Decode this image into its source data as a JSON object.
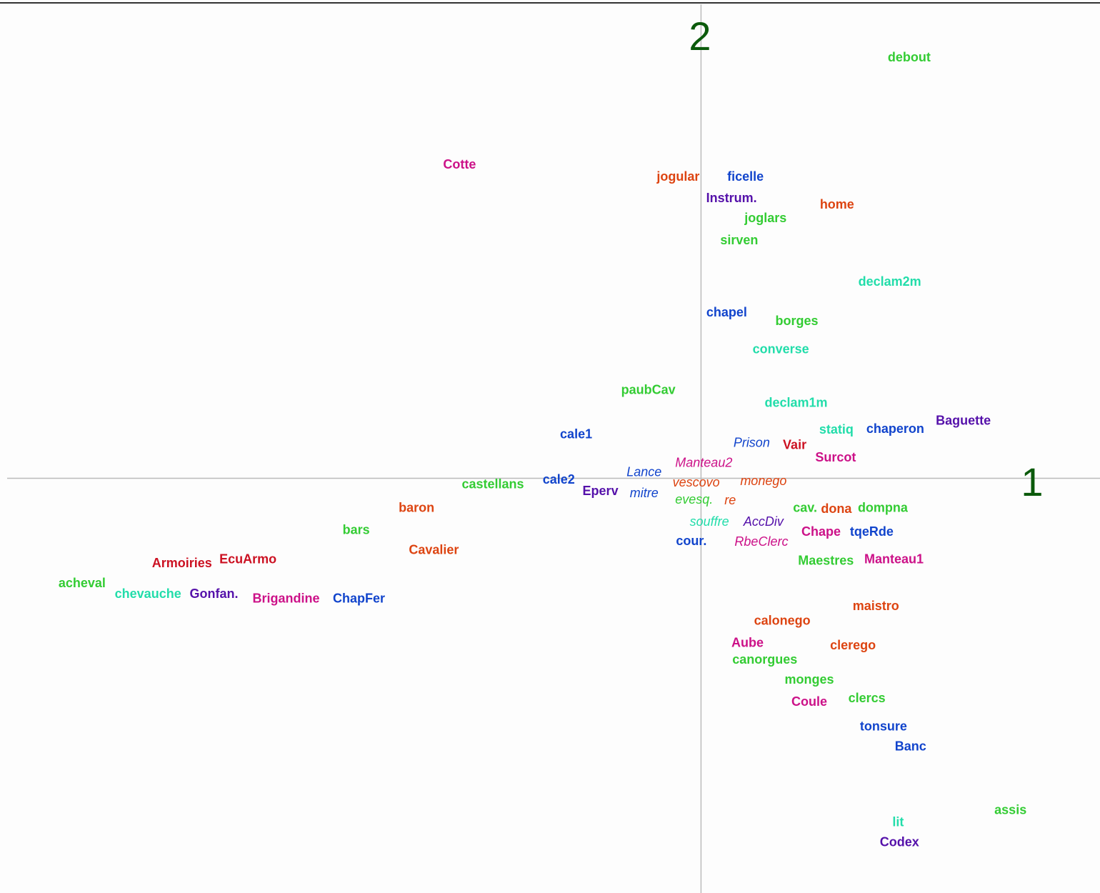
{
  "chart_data": {
    "type": "scatter",
    "title": "",
    "xlabel": "1",
    "ylabel": "2",
    "xlim": [
      -1.0,
      0.575
    ],
    "ylim": [
      -0.62,
      0.715
    ],
    "grid": false,
    "legend": "none",
    "colors": {
      "green": "#33cc33",
      "teal": "#22ddaa",
      "orange": "#dd4411",
      "red": "#cc1122",
      "magenta": "#cc1188",
      "blue": "#1144cc",
      "purple": "#5511aa"
    },
    "points": [
      {
        "label": "debout",
        "x": 0.3,
        "y": 0.628,
        "color": "green",
        "style": "bold"
      },
      {
        "label": "Cotte",
        "x": -0.348,
        "y": 0.468,
        "color": "magenta",
        "style": "bold"
      },
      {
        "label": "jogular",
        "x": -0.033,
        "y": 0.45,
        "color": "orange",
        "style": "bold"
      },
      {
        "label": "ficelle",
        "x": 0.064,
        "y": 0.45,
        "color": "blue",
        "style": "bold"
      },
      {
        "label": "Instrum.",
        "x": 0.044,
        "y": 0.418,
        "color": "purple",
        "style": "bold"
      },
      {
        "label": "home",
        "x": 0.196,
        "y": 0.408,
        "color": "orange",
        "style": "bold"
      },
      {
        "label": "joglars",
        "x": 0.093,
        "y": 0.388,
        "color": "green",
        "style": "bold"
      },
      {
        "label": "sirven",
        "x": 0.055,
        "y": 0.355,
        "color": "green",
        "style": "bold"
      },
      {
        "label": "declam2m",
        "x": 0.272,
        "y": 0.293,
        "color": "teal",
        "style": "bold"
      },
      {
        "label": "chapel",
        "x": 0.037,
        "y": 0.247,
        "color": "blue",
        "style": "bold"
      },
      {
        "label": "borges",
        "x": 0.138,
        "y": 0.234,
        "color": "green",
        "style": "bold"
      },
      {
        "label": "converse",
        "x": 0.115,
        "y": 0.192,
        "color": "teal",
        "style": "bold"
      },
      {
        "label": "paubCav",
        "x": -0.076,
        "y": 0.131,
        "color": "green",
        "style": "bold"
      },
      {
        "label": "declam1m",
        "x": 0.137,
        "y": 0.112,
        "color": "teal",
        "style": "bold"
      },
      {
        "label": "cale1",
        "x": -0.18,
        "y": 0.065,
        "color": "blue",
        "style": "bold"
      },
      {
        "label": "Baguette",
        "x": 0.378,
        "y": 0.085,
        "color": "purple",
        "style": "bold"
      },
      {
        "label": "statiq",
        "x": 0.195,
        "y": 0.072,
        "color": "teal",
        "style": "bold"
      },
      {
        "label": "chaperon",
        "x": 0.28,
        "y": 0.073,
        "color": "blue",
        "style": "bold"
      },
      {
        "label": "Prison",
        "x": 0.073,
        "y": 0.052,
        "color": "blue",
        "style": "italic"
      },
      {
        "label": "Vair",
        "x": 0.135,
        "y": 0.049,
        "color": "red",
        "style": "bold"
      },
      {
        "label": "Surcot",
        "x": 0.194,
        "y": 0.03,
        "color": "magenta",
        "style": "bold"
      },
      {
        "label": "Manteau2",
        "x": 0.004,
        "y": 0.022,
        "color": "magenta",
        "style": "italic"
      },
      {
        "label": "Lance",
        "x": -0.082,
        "y": 0.008,
        "color": "blue",
        "style": "italic"
      },
      {
        "label": "castellans",
        "x": -0.3,
        "y": -0.01,
        "color": "green",
        "style": "bold"
      },
      {
        "label": "cale2",
        "x": -0.205,
        "y": -0.003,
        "color": "blue",
        "style": "bold"
      },
      {
        "label": "vescovo",
        "x": -0.007,
        "y": -0.007,
        "color": "orange",
        "style": "italic"
      },
      {
        "label": "monego",
        "x": 0.09,
        "y": -0.005,
        "color": "orange",
        "style": "italic"
      },
      {
        "label": "Eperv",
        "x": -0.145,
        "y": -0.02,
        "color": "purple",
        "style": "bold"
      },
      {
        "label": "mitre",
        "x": -0.082,
        "y": -0.023,
        "color": "blue",
        "style": "italic"
      },
      {
        "label": "baron",
        "x": -0.41,
        "y": -0.045,
        "color": "orange",
        "style": "bold"
      },
      {
        "label": "evesq.",
        "x": -0.01,
        "y": -0.033,
        "color": "green",
        "style": "italic"
      },
      {
        "label": "re",
        "x": 0.042,
        "y": -0.034,
        "color": "orange",
        "style": "italic"
      },
      {
        "label": "cav.",
        "x": 0.15,
        "y": -0.045,
        "color": "green",
        "style": "bold"
      },
      {
        "label": "dona",
        "x": 0.195,
        "y": -0.047,
        "color": "orange",
        "style": "bold"
      },
      {
        "label": "dompna",
        "x": 0.262,
        "y": -0.045,
        "color": "green",
        "style": "bold"
      },
      {
        "label": "bars",
        "x": -0.497,
        "y": -0.078,
        "color": "green",
        "style": "bold"
      },
      {
        "label": "souffre",
        "x": 0.012,
        "y": -0.066,
        "color": "teal",
        "style": "italic"
      },
      {
        "label": "AccDiv",
        "x": 0.09,
        "y": -0.066,
        "color": "purple",
        "style": "italic"
      },
      {
        "label": "Chape",
        "x": 0.173,
        "y": -0.081,
        "color": "magenta",
        "style": "bold"
      },
      {
        "label": "tqeRde",
        "x": 0.246,
        "y": -0.081,
        "color": "blue",
        "style": "bold"
      },
      {
        "label": "cour.",
        "x": -0.014,
        "y": -0.095,
        "color": "blue",
        "style": "bold"
      },
      {
        "label": "RbeClerc",
        "x": 0.087,
        "y": -0.096,
        "color": "magenta",
        "style": "italic"
      },
      {
        "label": "Cavalier",
        "x": -0.385,
        "y": -0.108,
        "color": "orange",
        "style": "bold"
      },
      {
        "label": "Armoiries",
        "x": -0.748,
        "y": -0.128,
        "color": "red",
        "style": "bold"
      },
      {
        "label": "EcuArmo",
        "x": -0.653,
        "y": -0.122,
        "color": "red",
        "style": "bold"
      },
      {
        "label": "Maestres",
        "x": 0.18,
        "y": -0.124,
        "color": "green",
        "style": "bold"
      },
      {
        "label": "Manteau1",
        "x": 0.278,
        "y": -0.122,
        "color": "magenta",
        "style": "bold"
      },
      {
        "label": "acheval",
        "x": -0.892,
        "y": -0.158,
        "color": "green",
        "style": "bold"
      },
      {
        "label": "chevauche",
        "x": -0.797,
        "y": -0.174,
        "color": "teal",
        "style": "bold"
      },
      {
        "label": "Gonfan.",
        "x": -0.702,
        "y": -0.174,
        "color": "purple",
        "style": "bold"
      },
      {
        "label": "Brigandine",
        "x": -0.598,
        "y": -0.181,
        "color": "magenta",
        "style": "bold"
      },
      {
        "label": "ChapFer",
        "x": -0.493,
        "y": -0.181,
        "color": "blue",
        "style": "bold"
      },
      {
        "label": "maistro",
        "x": 0.252,
        "y": -0.192,
        "color": "orange",
        "style": "bold"
      },
      {
        "label": "calonego",
        "x": 0.117,
        "y": -0.214,
        "color": "orange",
        "style": "bold"
      },
      {
        "label": "Aube",
        "x": 0.067,
        "y": -0.247,
        "color": "magenta",
        "style": "bold"
      },
      {
        "label": "clerego",
        "x": 0.219,
        "y": -0.251,
        "color": "orange",
        "style": "bold"
      },
      {
        "label": "canorgues",
        "x": 0.092,
        "y": -0.272,
        "color": "green",
        "style": "bold"
      },
      {
        "label": "monges",
        "x": 0.156,
        "y": -0.302,
        "color": "green",
        "style": "bold"
      },
      {
        "label": "Coule",
        "x": 0.156,
        "y": -0.335,
        "color": "magenta",
        "style": "bold"
      },
      {
        "label": "clercs",
        "x": 0.239,
        "y": -0.33,
        "color": "green",
        "style": "bold"
      },
      {
        "label": "tonsure",
        "x": 0.263,
        "y": -0.372,
        "color": "blue",
        "style": "bold"
      },
      {
        "label": "Banc",
        "x": 0.302,
        "y": -0.402,
        "color": "blue",
        "style": "bold"
      },
      {
        "label": "assis",
        "x": 0.446,
        "y": -0.497,
        "color": "green",
        "style": "bold"
      },
      {
        "label": "lit",
        "x": 0.284,
        "y": -0.515,
        "color": "teal",
        "style": "bold"
      },
      {
        "label": "Codex",
        "x": 0.286,
        "y": -0.545,
        "color": "purple",
        "style": "bold"
      }
    ]
  }
}
